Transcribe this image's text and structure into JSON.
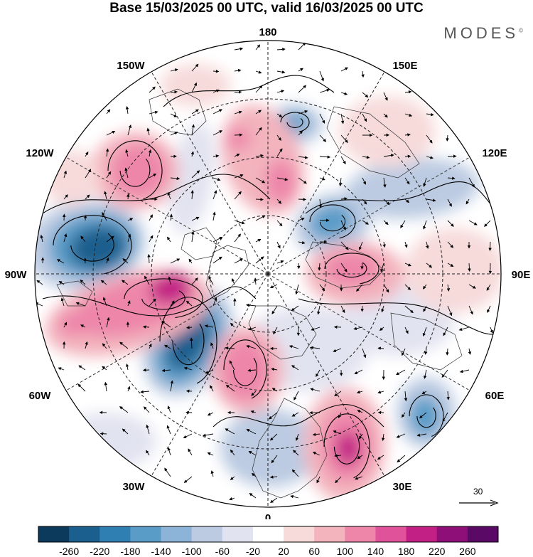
{
  "title": "Base 15/03/2025 00 UTC, valid 16/03/2025 00 UTC",
  "brand": "MODES",
  "brand_mark": "©",
  "longitude_labels": {
    "top": "180",
    "upper_left": "150W",
    "upper_right": "150E",
    "left_upper": "120W",
    "right_upper": "120E",
    "left": "90W",
    "right": "90E",
    "left_lower": "60W",
    "right_lower": "60E",
    "lower_left": "30W",
    "lower_right": "30E",
    "bottom": "0"
  },
  "reference_vector": {
    "value": "30"
  },
  "colorbar": {
    "ticks": [
      "-260",
      "-220",
      "-180",
      "-140",
      "-100",
      "-60",
      "-20",
      "20",
      "60",
      "100",
      "140",
      "180",
      "220",
      "260"
    ],
    "colors": [
      "#0b3a5c",
      "#1a5f8e",
      "#2f7fb3",
      "#5a9cc8",
      "#8bb4d8",
      "#bccbe2",
      "#e2e3f0",
      "#ffffff",
      "#f7dada",
      "#f3b4bd",
      "#ee86aa",
      "#e0529a",
      "#c32085",
      "#8e0f78",
      "#5a0a66"
    ]
  },
  "anomaly_colors": {
    "neg_strong": "#1a5f8e",
    "neg_mid": "#5a9cc8",
    "neg_weak": "#bccbe2",
    "neg_faint": "#e2e3f0",
    "pos_faint": "#f7dada",
    "pos_weak": "#f3b4bd",
    "pos_mid": "#ee86aa",
    "pos_strong": "#c32085"
  }
}
